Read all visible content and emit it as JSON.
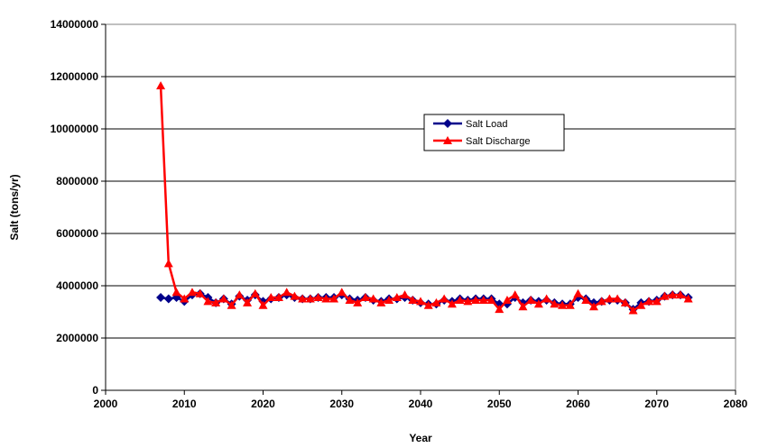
{
  "chart_data": {
    "type": "line",
    "xlabel": "Year",
    "ylabel": "Salt (tons/yr)",
    "xlim": [
      2000,
      2080
    ],
    "ylim": [
      0,
      14000000
    ],
    "xticks": [
      2000,
      2010,
      2020,
      2030,
      2040,
      2050,
      2060,
      2070,
      2080
    ],
    "yticks": [
      0,
      2000000,
      4000000,
      6000000,
      8000000,
      10000000,
      12000000,
      14000000
    ],
    "grid": "horizontal",
    "legend_position": "upper-right-inside",
    "x": [
      2007,
      2008,
      2009,
      2010,
      2011,
      2012,
      2013,
      2014,
      2015,
      2016,
      2017,
      2018,
      2019,
      2020,
      2021,
      2022,
      2023,
      2024,
      2025,
      2026,
      2027,
      2028,
      2029,
      2030,
      2031,
      2032,
      2033,
      2034,
      2035,
      2036,
      2037,
      2038,
      2039,
      2040,
      2041,
      2042,
      2043,
      2044,
      2045,
      2046,
      2047,
      2048,
      2049,
      2050,
      2051,
      2052,
      2053,
      2054,
      2055,
      2056,
      2057,
      2058,
      2059,
      2060,
      2061,
      2062,
      2063,
      2064,
      2065,
      2066,
      2067,
      2068,
      2069,
      2070,
      2071,
      2072,
      2073,
      2074
    ],
    "series": [
      {
        "name": "Salt Load",
        "color": "#00008B",
        "marker": "diamond",
        "values": [
          3550000,
          3500000,
          3550000,
          3400000,
          3650000,
          3700000,
          3550000,
          3350000,
          3500000,
          3300000,
          3600000,
          3450000,
          3650000,
          3400000,
          3500000,
          3550000,
          3650000,
          3550000,
          3500000,
          3500000,
          3550000,
          3550000,
          3550000,
          3650000,
          3500000,
          3450000,
          3550000,
          3450000,
          3400000,
          3500000,
          3500000,
          3550000,
          3450000,
          3350000,
          3300000,
          3300000,
          3450000,
          3400000,
          3500000,
          3450000,
          3500000,
          3500000,
          3500000,
          3300000,
          3300000,
          3550000,
          3350000,
          3450000,
          3400000,
          3450000,
          3350000,
          3300000,
          3300000,
          3550000,
          3500000,
          3350000,
          3400000,
          3450000,
          3450000,
          3350000,
          3100000,
          3350000,
          3400000,
          3450000,
          3600000,
          3650000,
          3650000,
          3550000
        ]
      },
      {
        "name": "Salt Discharge",
        "color": "#FF0000",
        "marker": "triangle",
        "values": [
          11650000,
          4850000,
          3750000,
          3500000,
          3750000,
          3700000,
          3400000,
          3350000,
          3500000,
          3250000,
          3650000,
          3350000,
          3700000,
          3250000,
          3550000,
          3550000,
          3750000,
          3600000,
          3500000,
          3500000,
          3550000,
          3500000,
          3500000,
          3750000,
          3450000,
          3350000,
          3550000,
          3500000,
          3350000,
          3450000,
          3550000,
          3650000,
          3450000,
          3400000,
          3250000,
          3350000,
          3500000,
          3300000,
          3450000,
          3400000,
          3450000,
          3450000,
          3450000,
          3100000,
          3450000,
          3650000,
          3200000,
          3450000,
          3300000,
          3500000,
          3300000,
          3250000,
          3250000,
          3700000,
          3450000,
          3200000,
          3400000,
          3500000,
          3500000,
          3350000,
          3050000,
          3250000,
          3400000,
          3400000,
          3600000,
          3650000,
          3650000,
          3500000
        ]
      }
    ]
  }
}
